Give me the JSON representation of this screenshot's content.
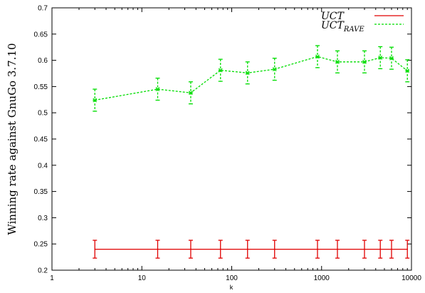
{
  "chart_data": {
    "type": "line",
    "xlabel": "k",
    "ylabel": "Winning rate against  GnuGo 3.7.10",
    "xscale": "log",
    "xlim": [
      1,
      10000
    ],
    "ylim": [
      0.2,
      0.7
    ],
    "xticks": [
      1,
      10,
      100,
      1000,
      10000
    ],
    "xtick_labels": [
      "1",
      "10",
      "100",
      "1000",
      "10000"
    ],
    "yticks": [
      0.2,
      0.25,
      0.3,
      0.35,
      0.4,
      0.45,
      0.5,
      0.55,
      0.6,
      0.65,
      0.7
    ],
    "ytick_labels": [
      "0.2",
      "0.25",
      "0.3",
      "0.35",
      "0.4",
      "0.45",
      "0.5",
      "0.55",
      "0.6",
      "0.65",
      "0.7"
    ],
    "legend_position": "top-right",
    "grid": false,
    "series": [
      {
        "name": "UCT",
        "legend_main": "UCT",
        "legend_sub": "",
        "color": "#e00000",
        "dash": "solid",
        "x": [
          3,
          15,
          35,
          75,
          150,
          300,
          900,
          1500,
          3000,
          4500,
          6000,
          9000
        ],
        "y": [
          0.24,
          0.24,
          0.24,
          0.24,
          0.24,
          0.24,
          0.24,
          0.24,
          0.24,
          0.24,
          0.24,
          0.24
        ],
        "err": [
          0.017,
          0.017,
          0.017,
          0.017,
          0.017,
          0.017,
          0.017,
          0.017,
          0.017,
          0.017,
          0.017,
          0.017
        ]
      },
      {
        "name": "UCT_RAVE",
        "legend_main": "UCT",
        "legend_sub": "RAVE",
        "color": "#00dd00",
        "dash": "dashed",
        "x": [
          3,
          15,
          35,
          75,
          150,
          300,
          900,
          1500,
          3000,
          4500,
          6000,
          9000
        ],
        "y": [
          0.524,
          0.545,
          0.538,
          0.581,
          0.576,
          0.583,
          0.607,
          0.597,
          0.597,
          0.605,
          0.604,
          0.58
        ],
        "err": [
          0.021,
          0.021,
          0.021,
          0.021,
          0.021,
          0.021,
          0.021,
          0.021,
          0.021,
          0.021,
          0.021,
          0.021
        ]
      }
    ]
  }
}
